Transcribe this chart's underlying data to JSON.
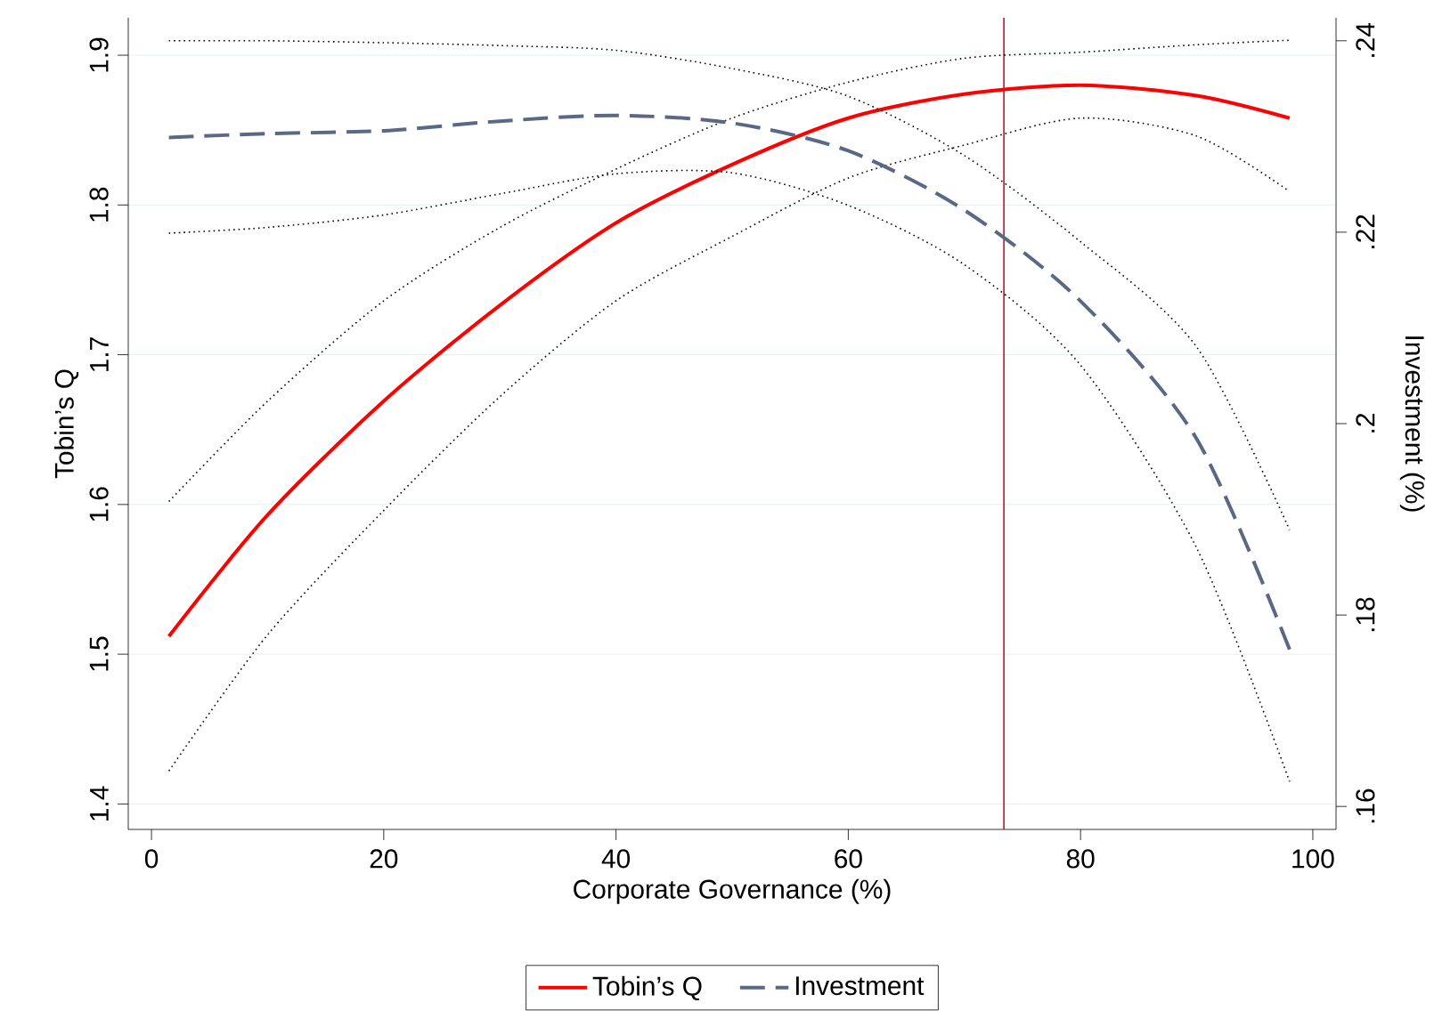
{
  "chart_data": {
    "type": "line",
    "xlabel": "Corporate Governance (%)",
    "ylabel": "Tobin’s Q",
    "y2label": "Investment (%)",
    "xlim": [
      -2,
      102
    ],
    "xticks": [
      0,
      20,
      40,
      60,
      80,
      100
    ],
    "ylim": [
      1.383,
      1.925
    ],
    "yticks": [
      1.4,
      1.5,
      1.6,
      1.7,
      1.8,
      1.9
    ],
    "y2lim": [
      0.1576,
      0.2424
    ],
    "y2ticks": [
      {
        "value": 0.16,
        "label": ".16"
      },
      {
        "value": 0.18,
        "label": ".18"
      },
      {
        "value": 0.2,
        "label": ".2"
      },
      {
        "value": 0.22,
        "label": ".22"
      },
      {
        "value": 0.24,
        "label": ".24"
      }
    ],
    "grid": "y",
    "legend": "bottom",
    "ref_lines": [
      {
        "axis": "x",
        "value": 73.4,
        "color": "#c8102e"
      }
    ],
    "series": [
      {
        "color": "#000000",
        "line_style": "dotted",
        "x": [
          1.5,
          10,
          20,
          30,
          40,
          50,
          60,
          70,
          80,
          90,
          98
        ],
        "values": [
          1.422,
          1.513,
          1.596,
          1.672,
          1.736,
          1.779,
          1.818,
          1.84,
          1.858,
          1.846,
          1.809
        ]
      },
      {
        "color": "#000000",
        "line_style": "dotted",
        "x": [
          1.5,
          10,
          20,
          30,
          40,
          50,
          60,
          70,
          80,
          90,
          98
        ],
        "values": [
          1.602,
          1.669,
          1.736,
          1.785,
          1.824,
          1.858,
          1.882,
          1.898,
          1.902,
          1.907,
          1.91
        ]
      },
      {
        "color": "#000000",
        "line_style": "dotted",
        "axis": "y2",
        "x": [
          1.5,
          10,
          20,
          30,
          40,
          50,
          60,
          70,
          80,
          90,
          98
        ],
        "values": [
          0.2199,
          0.2205,
          0.2218,
          0.224,
          0.2261,
          0.2262,
          0.2228,
          0.2166,
          0.2061,
          0.187,
          0.1626
        ]
      },
      {
        "color": "#000000",
        "line_style": "dotted",
        "axis": "y2",
        "x": [
          1.5,
          10,
          20,
          30,
          40,
          50,
          60,
          70,
          80,
          90,
          98
        ],
        "values": [
          0.24,
          0.24,
          0.2398,
          0.2395,
          0.239,
          0.2371,
          0.2342,
          0.228,
          0.219,
          0.208,
          0.1889
        ]
      },
      {
        "name": "Tobin’s Q",
        "color": "#ff0000",
        "line_style": "solid",
        "x": [
          1.5,
          10,
          20,
          30,
          40,
          50,
          60,
          70,
          80,
          90,
          98
        ],
        "values": [
          1.512,
          1.593,
          1.669,
          1.733,
          1.788,
          1.827,
          1.858,
          1.874,
          1.88,
          1.873,
          1.858
        ]
      },
      {
        "name": "Investment",
        "color": "#5a6785",
        "line_style": "dashed",
        "axis": "y2",
        "x": [
          1.5,
          10,
          20,
          30,
          40,
          50,
          60,
          70,
          80,
          90,
          98
        ],
        "values": [
          0.2299,
          0.2303,
          0.2306,
          0.2316,
          0.2322,
          0.2314,
          0.2285,
          0.2223,
          0.2128,
          0.1984,
          0.1764
        ]
      }
    ]
  }
}
